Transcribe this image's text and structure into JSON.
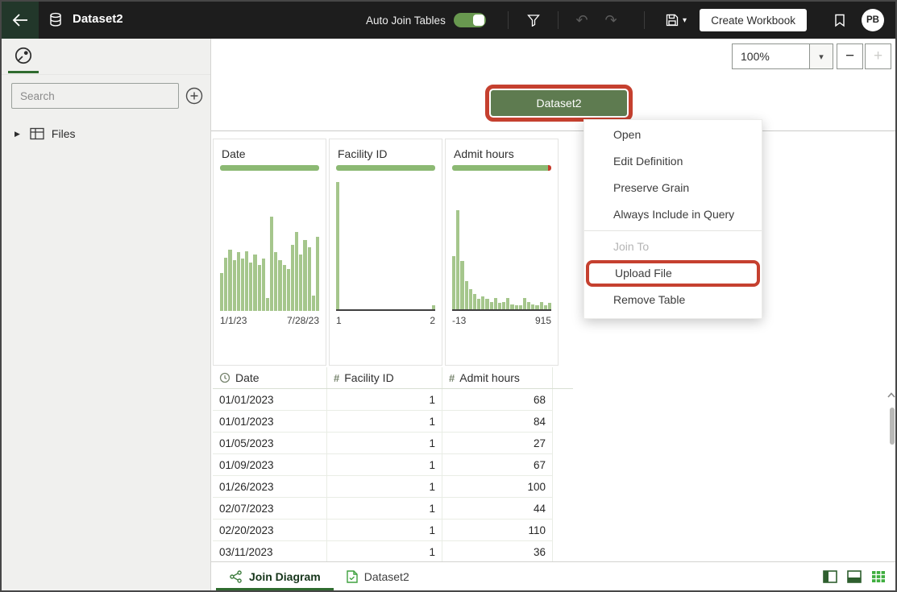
{
  "topbar": {
    "title": "Dataset2",
    "auto_join_label": "Auto Join Tables",
    "auto_join_enabled": true,
    "create_workbook_label": "Create Workbook",
    "avatar_initials": "PB"
  },
  "sidebar": {
    "search_placeholder": "Search",
    "items": [
      {
        "label": "Files"
      }
    ]
  },
  "canvas": {
    "zoom_value": "100%",
    "node_label": "Dataset2"
  },
  "context_menu": {
    "items": [
      {
        "label": "Open",
        "enabled": true
      },
      {
        "label": "Edit Definition",
        "enabled": true
      },
      {
        "label": "Preserve Grain",
        "enabled": true
      },
      {
        "label": "Always Include in Query",
        "enabled": true
      },
      {
        "separator": true
      },
      {
        "label": "Join To",
        "enabled": false
      },
      {
        "label": "Upload File",
        "enabled": true,
        "highlighted": true
      },
      {
        "label": "Remove Table",
        "enabled": true
      }
    ]
  },
  "preview": {
    "columns": [
      {
        "name": "Date",
        "min": "1/1/23",
        "max": "7/28/23",
        "quality_green": 1,
        "axis_line": false,
        "histogram": [
          0.3,
          0.42,
          0.48,
          0.4,
          0.46,
          0.41,
          0.47,
          0.38,
          0.44,
          0.36,
          0.41,
          0.1,
          0.74,
          0.46,
          0.4,
          0.36,
          0.33,
          0.52,
          0.62,
          0.44,
          0.56,
          0.5,
          0.12,
          0.58
        ]
      },
      {
        "name": "Facility ID",
        "min": "1",
        "max": "2",
        "quality_green": 1,
        "axis_line": true,
        "histogram": [
          1,
          0,
          0,
          0,
          0,
          0,
          0,
          0,
          0,
          0,
          0,
          0,
          0,
          0,
          0,
          0,
          0,
          0,
          0,
          0,
          0,
          0,
          0,
          0.03
        ]
      },
      {
        "name": "Admit hours",
        "min": "-13",
        "max": "915",
        "quality_green": 0.97,
        "axis_line": true,
        "histogram": [
          0.42,
          0.78,
          0.38,
          0.22,
          0.16,
          0.12,
          0.08,
          0.1,
          0.08,
          0.06,
          0.09,
          0.05,
          0.06,
          0.09,
          0.04,
          0.03,
          0.03,
          0.09,
          0.06,
          0.04,
          0.03,
          0.06,
          0.03,
          0.05
        ]
      }
    ],
    "table": {
      "headers": [
        {
          "icon": "clock",
          "label": "Date"
        },
        {
          "icon": "hash",
          "label": "Facility ID"
        },
        {
          "icon": "hash",
          "label": "Admit hours"
        }
      ],
      "rows": [
        [
          "01/01/2023",
          "1",
          "68"
        ],
        [
          "01/01/2023",
          "1",
          "84"
        ],
        [
          "01/05/2023",
          "1",
          "27"
        ],
        [
          "01/09/2023",
          "1",
          "67"
        ],
        [
          "01/26/2023",
          "1",
          "100"
        ],
        [
          "02/07/2023",
          "1",
          "44"
        ],
        [
          "02/20/2023",
          "1",
          "110"
        ],
        [
          "03/11/2023",
          "1",
          "36"
        ]
      ]
    }
  },
  "bottombar": {
    "tabs": [
      {
        "label": "Join Diagram",
        "icon": "join-diagram",
        "active": true
      },
      {
        "label": "Dataset2",
        "icon": "dataset-file",
        "active": false
      }
    ]
  },
  "colors": {
    "red": "#c5402f",
    "node_green": "#5e7b50",
    "hist_green": "#a5c68c",
    "quality_green": "#8cb973",
    "underline_green": "#2f6b2f",
    "toggle_green": "#68984f",
    "back_green": "#22372a"
  }
}
